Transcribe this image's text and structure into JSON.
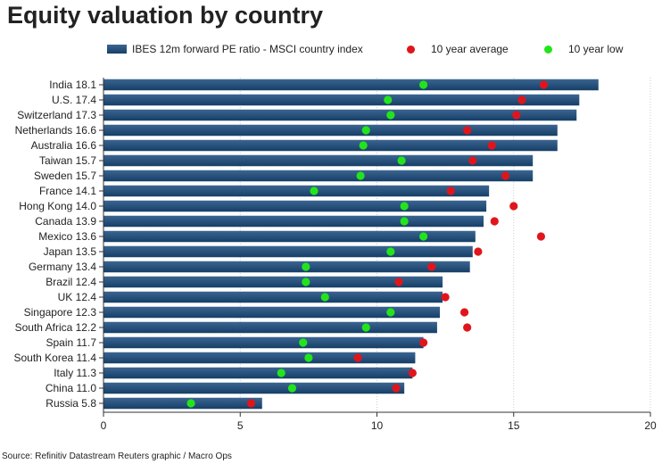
{
  "title": "Equity valuation by country",
  "source": "Source: Refinitiv Datastream Reuters graphic / Macro Ops",
  "legend": {
    "bar_label": "IBES 12m forward PE ratio - MSCI country index",
    "avg_label": "10 year average",
    "low_label": "10 year low"
  },
  "colors": {
    "bar_top": "#3b6591",
    "bar_bottom": "#163f67",
    "avg": "#e0151b",
    "low": "#23e41c",
    "grid": "#cccccc"
  },
  "chart_data": {
    "type": "bar",
    "orientation": "horizontal",
    "title": "Equity valuation by country",
    "xlabel": "",
    "ylabel": "",
    "xlim": [
      0,
      20
    ],
    "xticks": [
      0,
      5,
      10,
      15,
      20
    ],
    "categories": [
      "India 18.1",
      "U.S. 17.4",
      "Switzerland 17.3",
      "Netherlands 16.6",
      "Australia 16.6",
      "Taiwan 15.7",
      "Sweden 15.7",
      "France 14.1",
      "Hong Kong 14.0",
      "Canada 13.9",
      "Mexico 13.6",
      "Japan 13.5",
      "Germany 13.4",
      "Brazil 12.4",
      "UK 12.4",
      "Singapore 12.3",
      "South Africa 12.2",
      "Spain 11.7",
      "South Korea 11.4",
      "Italy 11.3",
      "China 11.0",
      "Russia 5.8"
    ],
    "series": [
      {
        "name": "IBES 12m forward PE ratio - MSCI country index",
        "kind": "bar",
        "values": [
          18.1,
          17.4,
          17.3,
          16.6,
          16.6,
          15.7,
          15.7,
          14.1,
          14.0,
          13.9,
          13.6,
          13.5,
          13.4,
          12.4,
          12.4,
          12.3,
          12.2,
          11.7,
          11.4,
          11.3,
          11.0,
          5.8
        ]
      },
      {
        "name": "10 year average",
        "kind": "dot",
        "values": [
          16.1,
          15.3,
          15.1,
          13.3,
          14.2,
          13.5,
          14.7,
          12.7,
          15.0,
          14.3,
          16.0,
          13.7,
          12.0,
          10.8,
          12.5,
          13.2,
          13.3,
          11.7,
          9.3,
          11.3,
          10.7,
          5.4
        ]
      },
      {
        "name": "10 year low",
        "kind": "dot",
        "values": [
          11.7,
          10.4,
          10.5,
          9.6,
          9.5,
          10.9,
          9.4,
          7.7,
          11.0,
          11.0,
          11.7,
          10.5,
          7.4,
          7.4,
          8.1,
          10.5,
          9.6,
          7.3,
          7.5,
          6.5,
          6.9,
          3.2
        ]
      }
    ],
    "grid": true,
    "legend_position": "top"
  }
}
